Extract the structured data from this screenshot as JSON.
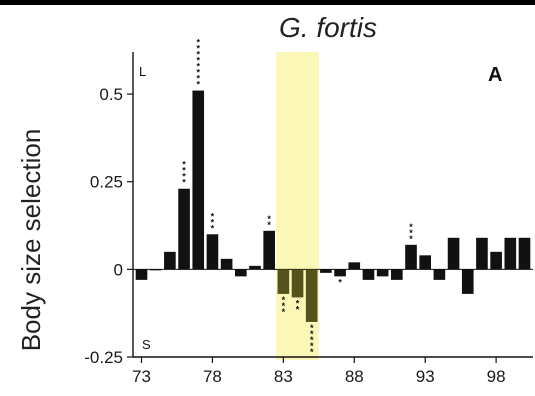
{
  "chart_data": {
    "type": "bar",
    "title": "G. fortis",
    "ylabel": "Body size selection",
    "xlabel": "",
    "panel_label": "A",
    "top_corner_label": "L",
    "bottom_corner_label": "S",
    "ylim": [
      -0.25,
      0.62
    ],
    "xlim": [
      72.4,
      100.6
    ],
    "yticks": [
      -0.25,
      0,
      0.25,
      0.5
    ],
    "ytick_labels": [
      "-0.25",
      "0",
      "0.25",
      "0.5"
    ],
    "xticks": [
      73,
      78,
      83,
      88,
      93,
      98
    ],
    "xtick_labels": [
      "73",
      "78",
      "83",
      "88",
      "93",
      "98"
    ],
    "highlight_range": [
      82.5,
      85.5
    ],
    "highlight_color": "#fbf7b6",
    "bar_color": "#111111",
    "highlight_bar_color": "#55531b",
    "x": [
      73,
      74,
      75,
      76,
      77,
      78,
      79,
      80,
      81,
      82,
      83,
      84,
      85,
      86,
      87,
      88,
      89,
      90,
      91,
      92,
      93,
      94,
      95,
      96,
      97,
      98,
      99,
      100
    ],
    "values": [
      -0.03,
      0.0,
      0.05,
      0.23,
      0.51,
      0.1,
      0.03,
      -0.02,
      0.01,
      0.11,
      -0.07,
      -0.08,
      -0.15,
      -0.01,
      -0.02,
      0.02,
      -0.03,
      -0.02,
      -0.03,
      0.07,
      0.04,
      -0.03,
      0.09,
      -0.07,
      0.09,
      0.05,
      0.09,
      0.09
    ],
    "significance": [
      "",
      "",
      "",
      "****",
      "********",
      "***",
      "",
      "",
      "",
      "**",
      "***",
      "**",
      "*****",
      "",
      "*",
      "",
      "",
      "",
      "",
      "***",
      "",
      "",
      "",
      "",
      "",
      "",
      "",
      ""
    ]
  }
}
